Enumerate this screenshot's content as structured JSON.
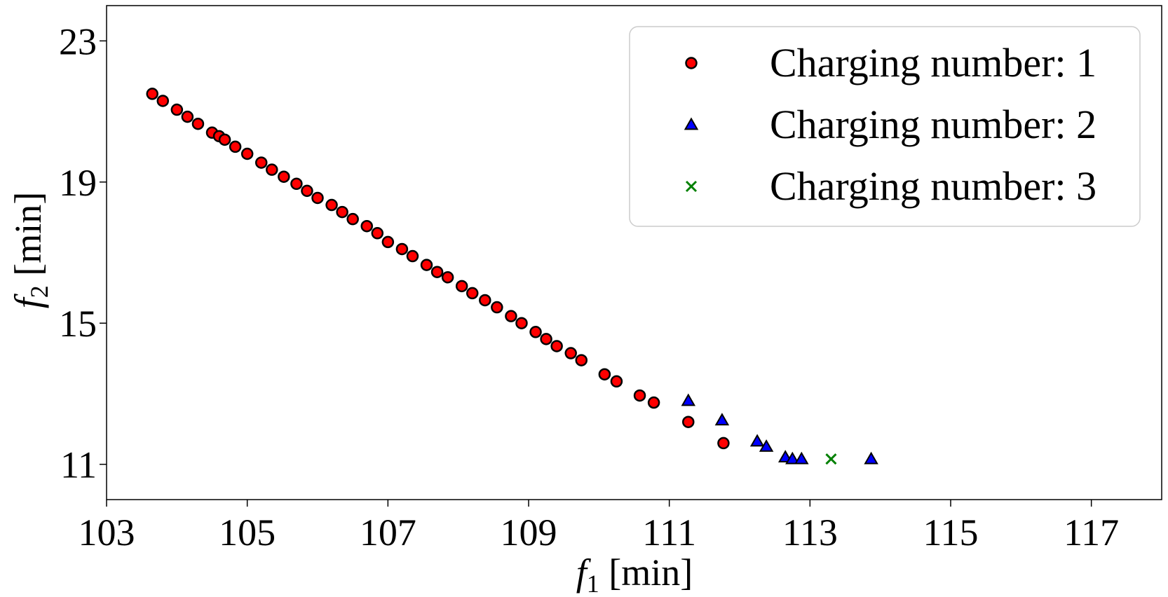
{
  "chart_data": {
    "type": "scatter",
    "title": "",
    "xlabel": {
      "main": "f",
      "sub": "1",
      "unit": " [min]"
    },
    "ylabel": {
      "main": "f",
      "sub": "2",
      "unit": " [min]"
    },
    "xlim": [
      103,
      118
    ],
    "ylim": [
      10,
      24
    ],
    "xticks": [
      "103",
      "105",
      "107",
      "109",
      "111",
      "113",
      "115",
      "117"
    ],
    "yticks": [
      "11",
      "15",
      "19",
      "23"
    ],
    "grid": false,
    "legend_position": "top-right",
    "series": [
      {
        "name": "Charging number: 1",
        "marker": "circle",
        "color": "#ff0000",
        "edge_color": "#000000",
        "points": [
          [
            103.65,
            21.5
          ],
          [
            103.8,
            21.3
          ],
          [
            104.0,
            21.05
          ],
          [
            104.15,
            20.85
          ],
          [
            104.3,
            20.65
          ],
          [
            104.5,
            20.4
          ],
          [
            104.6,
            20.3
          ],
          [
            104.68,
            20.2
          ],
          [
            104.83,
            20.0
          ],
          [
            105.0,
            19.8
          ],
          [
            105.2,
            19.55
          ],
          [
            105.35,
            19.35
          ],
          [
            105.52,
            19.15
          ],
          [
            105.7,
            18.95
          ],
          [
            105.85,
            18.75
          ],
          [
            106.0,
            18.55
          ],
          [
            106.2,
            18.35
          ],
          [
            106.35,
            18.15
          ],
          [
            106.5,
            17.95
          ],
          [
            106.7,
            17.75
          ],
          [
            106.85,
            17.55
          ],
          [
            107.0,
            17.3
          ],
          [
            107.2,
            17.1
          ],
          [
            107.35,
            16.9
          ],
          [
            107.55,
            16.65
          ],
          [
            107.7,
            16.45
          ],
          [
            107.85,
            16.3
          ],
          [
            108.05,
            16.05
          ],
          [
            108.2,
            15.85
          ],
          [
            108.38,
            15.65
          ],
          [
            108.55,
            15.45
          ],
          [
            108.75,
            15.2
          ],
          [
            108.9,
            15.0
          ],
          [
            109.1,
            14.75
          ],
          [
            109.25,
            14.55
          ],
          [
            109.4,
            14.35
          ],
          [
            109.6,
            14.15
          ],
          [
            109.75,
            13.95
          ],
          [
            110.08,
            13.55
          ],
          [
            110.25,
            13.35
          ],
          [
            110.58,
            12.95
          ],
          [
            110.78,
            12.75
          ],
          [
            111.27,
            12.2
          ],
          [
            111.77,
            11.6
          ]
        ]
      },
      {
        "name": "Charging number: 2",
        "marker": "triangle",
        "color": "#0000ff",
        "edge_color": "#000000",
        "points": [
          [
            111.27,
            12.8
          ],
          [
            111.75,
            12.25
          ],
          [
            112.25,
            11.65
          ],
          [
            112.38,
            11.5
          ],
          [
            112.65,
            11.2
          ],
          [
            112.75,
            11.15
          ],
          [
            112.88,
            11.15
          ],
          [
            113.87,
            11.15
          ]
        ]
      },
      {
        "name": "Charging number: 3",
        "marker": "x",
        "color": "#008000",
        "edge_color": "",
        "points": [
          [
            113.3,
            11.15
          ]
        ]
      }
    ]
  }
}
